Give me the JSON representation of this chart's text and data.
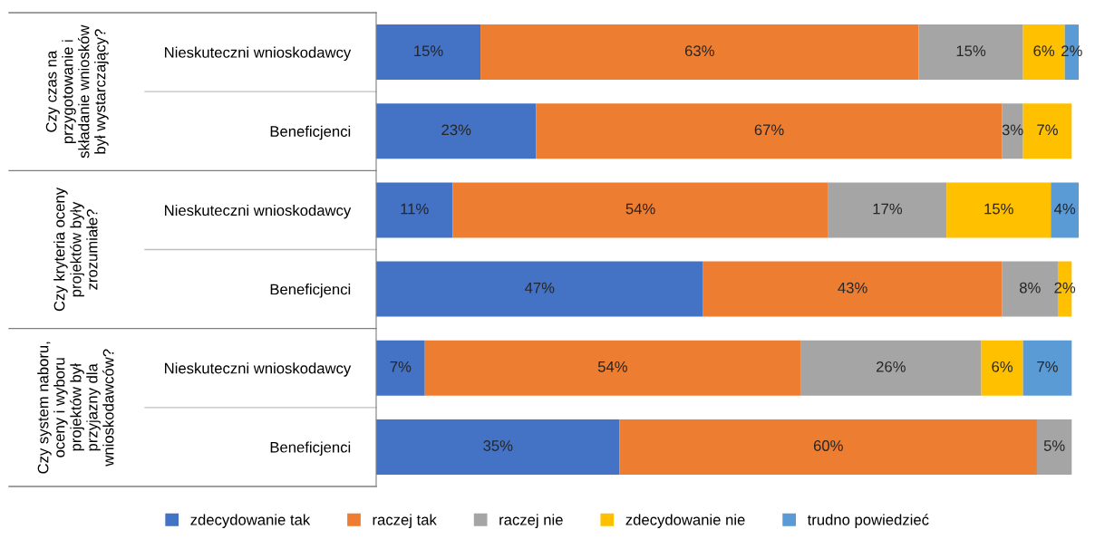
{
  "chart_data": {
    "type": "bar",
    "orientation": "horizontal",
    "stacked": true,
    "legend": "bottom",
    "grid": false,
    "categories": [
      "Nieskuteczni wnioskodawcy",
      "Beneficjenci",
      "Nieskuteczni wnioskodawcy",
      "Beneficjenci",
      "Nieskuteczni wnioskodawcy",
      "Beneficjenci"
    ],
    "annotations": [
      "Czy czas na przygotowanie i składanie wniosków był wystarczający?",
      "Czy kryteria oceny projektów były zrozumiałe?",
      "Czy system naboru, oceny i wyboru projektów był przyjazny dla wnioskodawców?"
    ],
    "series": [
      {
        "name": "zdecydowanie tak",
        "color": "#4472c4",
        "values": [
          15,
          23,
          11,
          47,
          7,
          35
        ],
        "value_labels": [
          "15%",
          "23%",
          "11%",
          "47%",
          "7%",
          "35%"
        ]
      },
      {
        "name": "raczej tak",
        "color": "#ed7d31",
        "values": [
          63,
          67,
          54,
          43,
          54,
          60
        ],
        "value_labels": [
          "63%",
          "67%",
          "54%",
          "43%",
          "54%",
          "60%"
        ]
      },
      {
        "name": "raczej nie",
        "color": "#a5a5a5",
        "values": [
          15,
          3,
          17,
          8,
          26,
          5
        ],
        "value_labels": [
          "15%",
          "3%",
          "17%",
          "8%",
          "26%",
          "5%"
        ]
      },
      {
        "name": "zdecydowanie nie",
        "color": "#ffc000",
        "values": [
          6,
          7,
          15,
          2,
          6,
          null
        ],
        "value_labels": [
          "6%",
          "7%",
          "15%",
          "2%",
          "6%",
          null
        ]
      },
      {
        "name": "trudno powiedzieć",
        "color": "#5b9bd5",
        "values": [
          2,
          null,
          4,
          null,
          7,
          null
        ],
        "value_labels": [
          "2%",
          null,
          "4%",
          null,
          "7%",
          null
        ]
      }
    ]
  }
}
